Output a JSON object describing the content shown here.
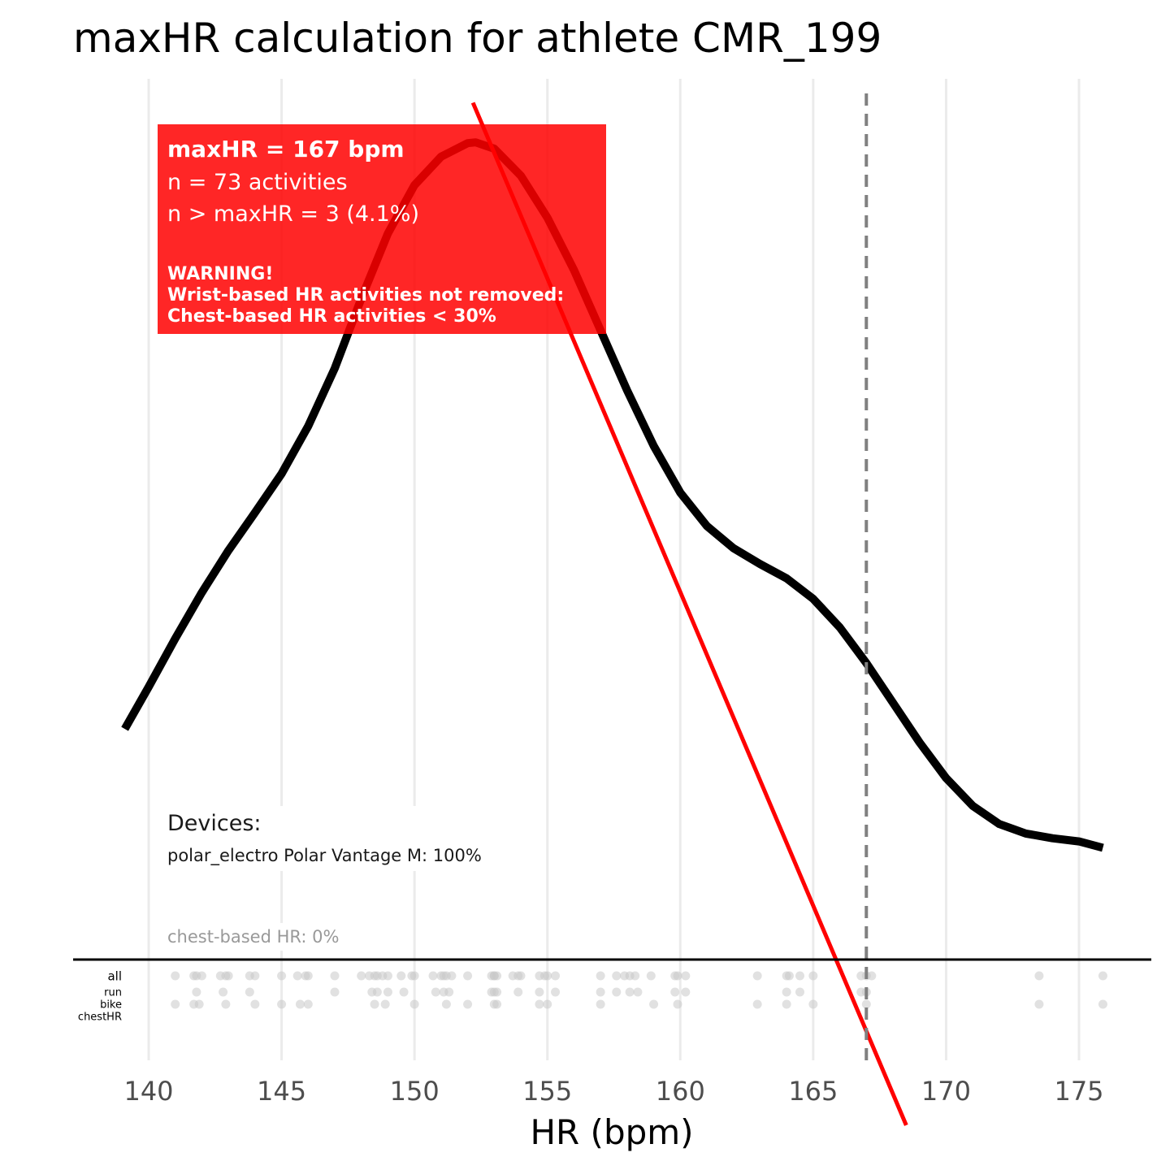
{
  "chart_data": {
    "type": "line",
    "title": "maxHR calculation for athlete CMR_199",
    "xlabel": "HR (bpm)",
    "ylabel": "",
    "xlim": [
      137.2,
      177.8
    ],
    "x_ticks": [
      140,
      145,
      150,
      155,
      160,
      165,
      170,
      175
    ],
    "x_tick_labels": [
      "140",
      "145",
      "150",
      "155",
      "160",
      "165",
      "170",
      "175"
    ],
    "grid": "vertical major gridlines",
    "density_curve": {
      "color": "#000000",
      "x": [
        139.1,
        140.0,
        141.0,
        142.0,
        143.0,
        144.0,
        145.0,
        146.0,
        147.0,
        148.0,
        149.0,
        150.0,
        151.0,
        152.0,
        152.3,
        153.0,
        154.0,
        155.0,
        156.0,
        157.0,
        158.0,
        159.0,
        160.0,
        161.0,
        162.0,
        163.0,
        164.0,
        165.0,
        166.0,
        167.0,
        168.0,
        169.0,
        170.0,
        171.0,
        172.0,
        173.0,
        174.0,
        175.0,
        175.9
      ],
      "y": [
        0.29,
        0.343,
        0.404,
        0.462,
        0.515,
        0.563,
        0.612,
        0.672,
        0.745,
        0.833,
        0.915,
        0.976,
        1.012,
        1.029,
        1.03,
        1.022,
        0.988,
        0.935,
        0.869,
        0.793,
        0.717,
        0.647,
        0.588,
        0.546,
        0.518,
        0.498,
        0.48,
        0.454,
        0.418,
        0.373,
        0.323,
        0.273,
        0.228,
        0.193,
        0.17,
        0.158,
        0.152,
        0.148,
        0.14
      ]
    },
    "regression_line": {
      "color": "#ff0000",
      "points": [
        [
          152.2,
          1.08
        ],
        [
          168.5,
          -0.21
        ]
      ]
    },
    "maxHR_line": {
      "x": 167,
      "style": "dashed",
      "color": "#808080"
    },
    "rug": {
      "rows": [
        "all",
        "run",
        "bike",
        "chestHR"
      ],
      "points": {
        "all": [
          141.0,
          141.7,
          141.8,
          142.0,
          142.7,
          142.9,
          143.0,
          143.8,
          144.0,
          145.0,
          145.6,
          145.9,
          146.0,
          147.0,
          148.0,
          148.3,
          148.5,
          148.6,
          148.8,
          149.0,
          149.5,
          149.9,
          150.0,
          150.7,
          151.0,
          151.1,
          151.2,
          151.4,
          152.0,
          152.9,
          153.0,
          153.0,
          153.1,
          153.7,
          153.9,
          154.0,
          154.7,
          154.9,
          155.0,
          155.3,
          157.0,
          157.6,
          157.9,
          158.1,
          158.3,
          158.9,
          159.8,
          159.9,
          160.2,
          162.9,
          164.0,
          164.1,
          164.5,
          165.0,
          166.8,
          167.0,
          167.2,
          173.5,
          175.9
        ],
        "run": [
          141.8,
          142.8,
          143.8,
          147.0,
          148.4,
          148.6,
          149.0,
          149.6,
          150.8,
          151.1,
          151.3,
          152.9,
          153.0,
          153.1,
          153.9,
          154.7,
          155.3,
          157.0,
          157.6,
          158.1,
          158.4,
          159.8,
          160.2,
          164.0,
          164.5,
          166.8,
          167.0
        ],
        "bike": [
          141.0,
          141.7,
          141.9,
          142.9,
          144.0,
          145.0,
          145.7,
          146.0,
          148.5,
          148.9,
          150.0,
          151.2,
          152.0,
          153.0,
          153.1,
          154.7,
          155.0,
          157.0,
          159.0,
          159.9,
          162.9,
          164.0,
          165.0,
          167.0,
          173.5,
          175.9
        ],
        "chestHR": []
      }
    },
    "annotations": {
      "maxhr_value": "maxHR = 167 bpm",
      "n_activities": "n = 73 activities",
      "n_above": "n > maxHR = 3 (4.1%)",
      "warning_1": "WARNING!",
      "warning_2": "Wrist-based HR activities not removed:",
      "warning_3": "Chest-based HR activities < 30%",
      "devices_title": "Devices:",
      "devices_value": "polar_electro Polar Vantage M: 100%",
      "chest_hr": "chest-based HR: 0%"
    },
    "colors": {
      "annotation_box": "#ff0000",
      "gridline": "#ebebeb",
      "rug_point": "#c8c8c8",
      "chest_text": "#999999"
    }
  }
}
